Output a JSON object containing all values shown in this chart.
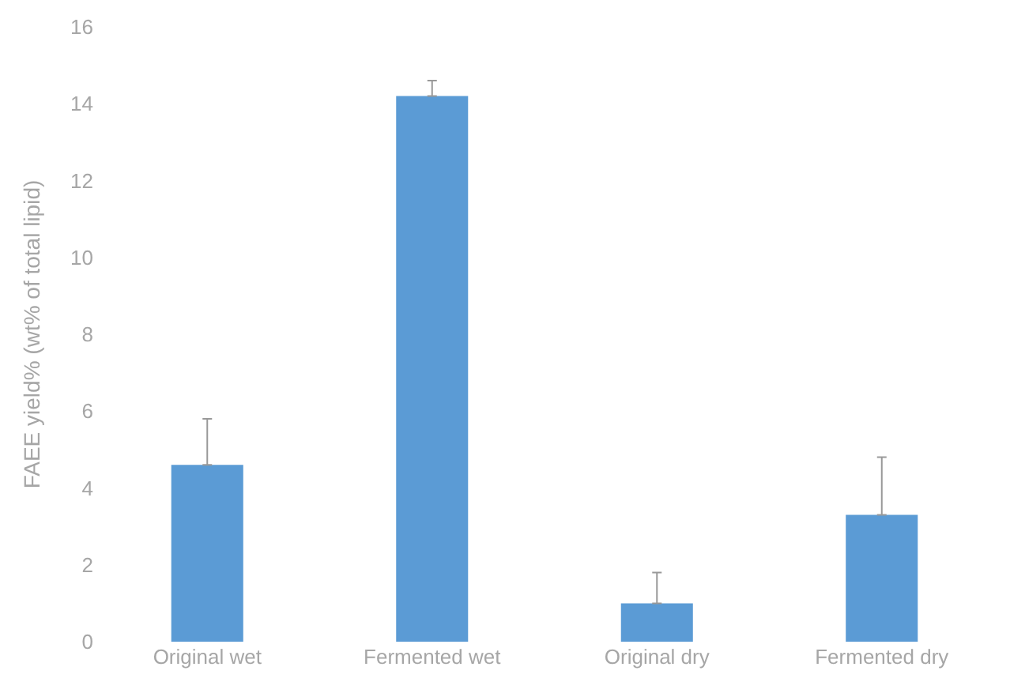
{
  "chart_data": {
    "type": "bar",
    "ylabel": "FAEE yield% (wt% of total lipid)",
    "categories": [
      "Original wet",
      "Fermented wet",
      "Original dry",
      "Fermented dry"
    ],
    "values": [
      4.6,
      14.2,
      1.0,
      3.3
    ],
    "errors": [
      [
        4.6,
        5.8
      ],
      [
        14.2,
        14.6
      ],
      [
        1.0,
        1.8
      ],
      [
        3.3,
        4.8
      ]
    ],
    "color": "#5b9bd5",
    "ylim": [
      0,
      16
    ],
    "yticks": [
      0,
      2,
      4,
      6,
      8,
      10,
      12,
      14,
      16
    ]
  }
}
